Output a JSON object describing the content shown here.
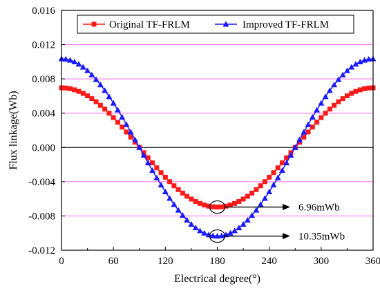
{
  "chart_data": {
    "type": "line",
    "title": "",
    "xlabel": "Electrical degree(°)",
    "ylabel": "Flux linkage(Wb)",
    "xlim": [
      0,
      360
    ],
    "ylim": [
      -0.012,
      0.016
    ],
    "x_ticks": [
      "0",
      "60",
      "120",
      "180",
      "240",
      "300",
      "360"
    ],
    "y_ticks": [
      "-0.012",
      "-0.008",
      "-0.004",
      "0.000",
      "0.004",
      "0.008",
      "0.012",
      "0.016"
    ],
    "grid": "horizontal magenta lines at y ticks",
    "zero_line": true,
    "legend_position": "top",
    "series": [
      {
        "name": "Original TF-FRLM",
        "color": "#ff1a1a",
        "marker": "square",
        "amplitude": 0.00696,
        "peak_x": 0
      },
      {
        "name": "Improved TF-FRLM",
        "color": "#1a1aff",
        "marker": "triangle",
        "amplitude": 0.01035,
        "peak_x": 0
      }
    ],
    "x_step": 5,
    "annotations": [
      {
        "text": "6.96mWb",
        "x": 180,
        "y": -0.00696
      },
      {
        "text": "10.35mWb",
        "x": 180,
        "y": -0.01035
      }
    ]
  }
}
